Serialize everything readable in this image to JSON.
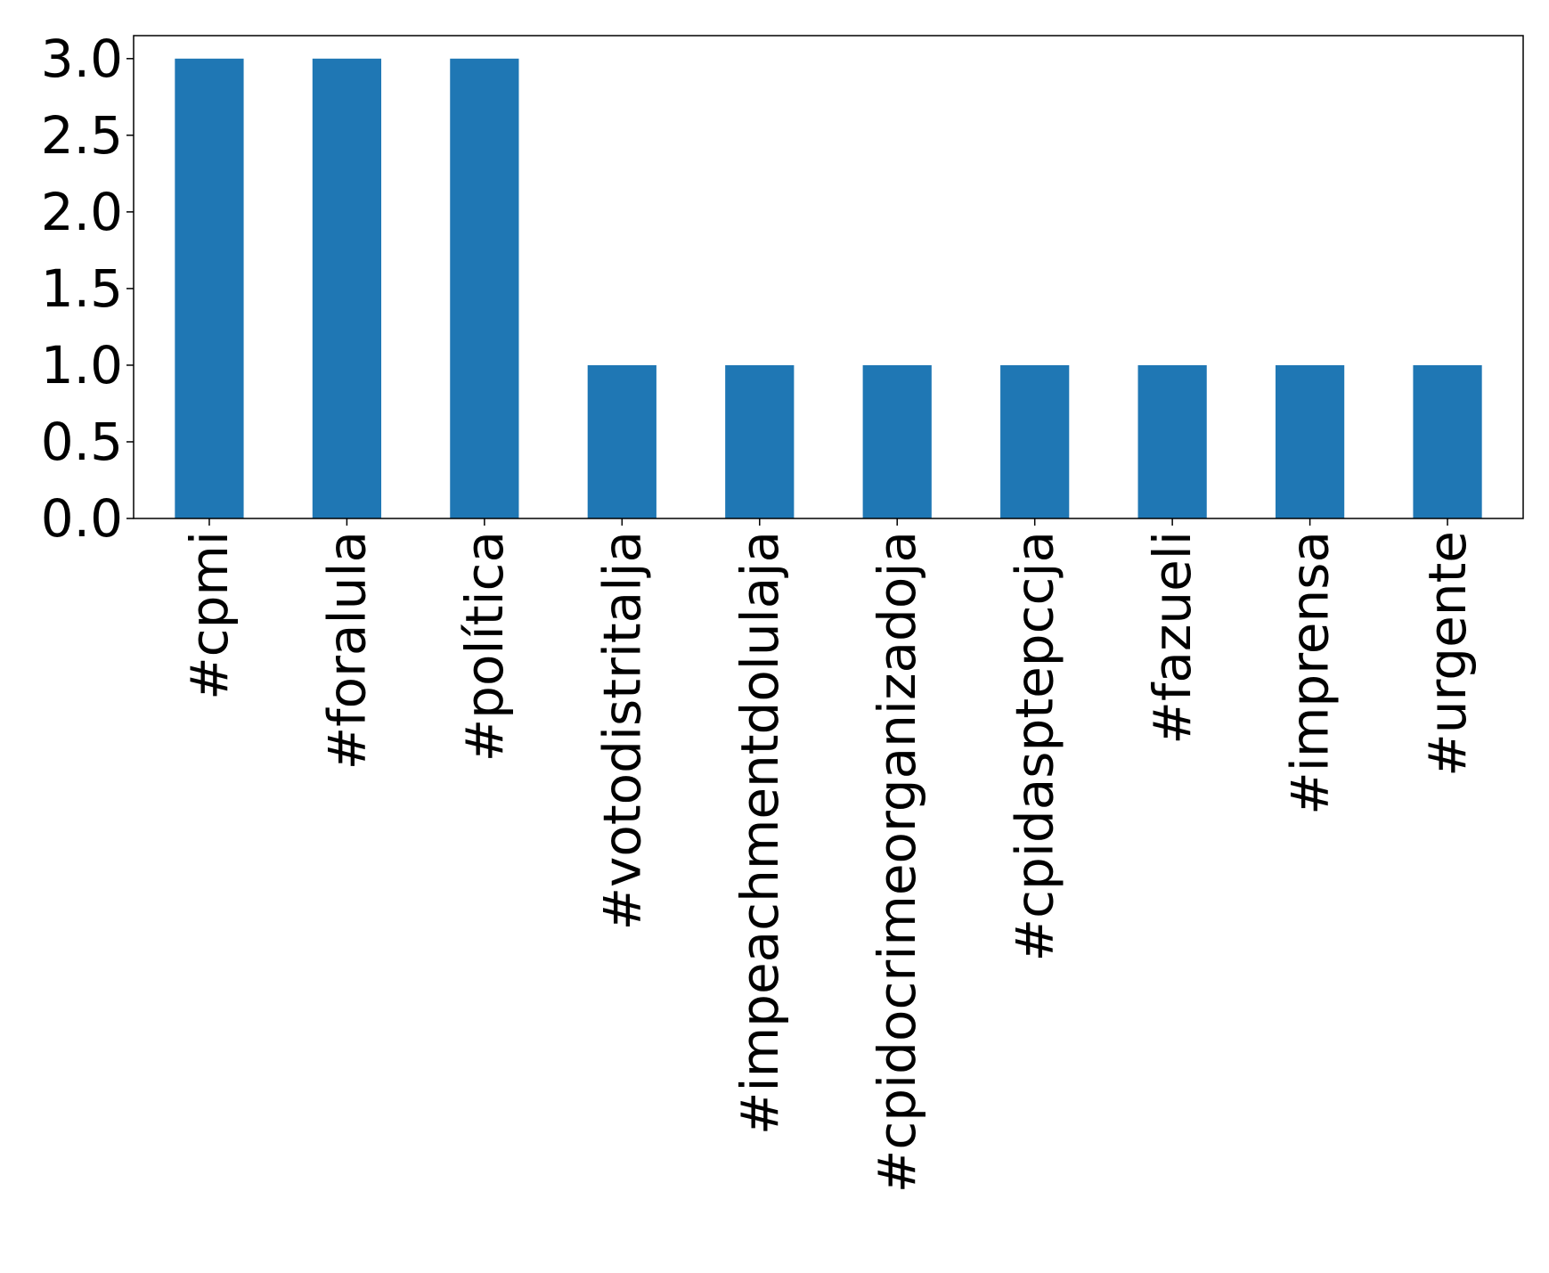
{
  "chart_data": {
    "type": "bar",
    "categories": [
      "#cpmi",
      "#foralula",
      "#política",
      "#votodistritalja",
      "#impeachmentdolulaja",
      "#cpidocrimeorganizadoja",
      "#cpidasptepccja",
      "#fazueli",
      "#imprensa",
      "#urgente"
    ],
    "values": [
      3,
      3,
      3,
      1,
      1,
      1,
      1,
      1,
      1,
      1
    ],
    "ylim": [
      0,
      3.15
    ],
    "yticks": [
      "0.0",
      "0.5",
      "1.0",
      "1.5",
      "2.0",
      "2.5",
      "3.0"
    ],
    "ytick_values": [
      0,
      0.5,
      1,
      1.5,
      2,
      2.5,
      3
    ],
    "bar_color": "#1f77b4",
    "grid": false,
    "title": "",
    "xlabel": "",
    "ylabel": ""
  }
}
